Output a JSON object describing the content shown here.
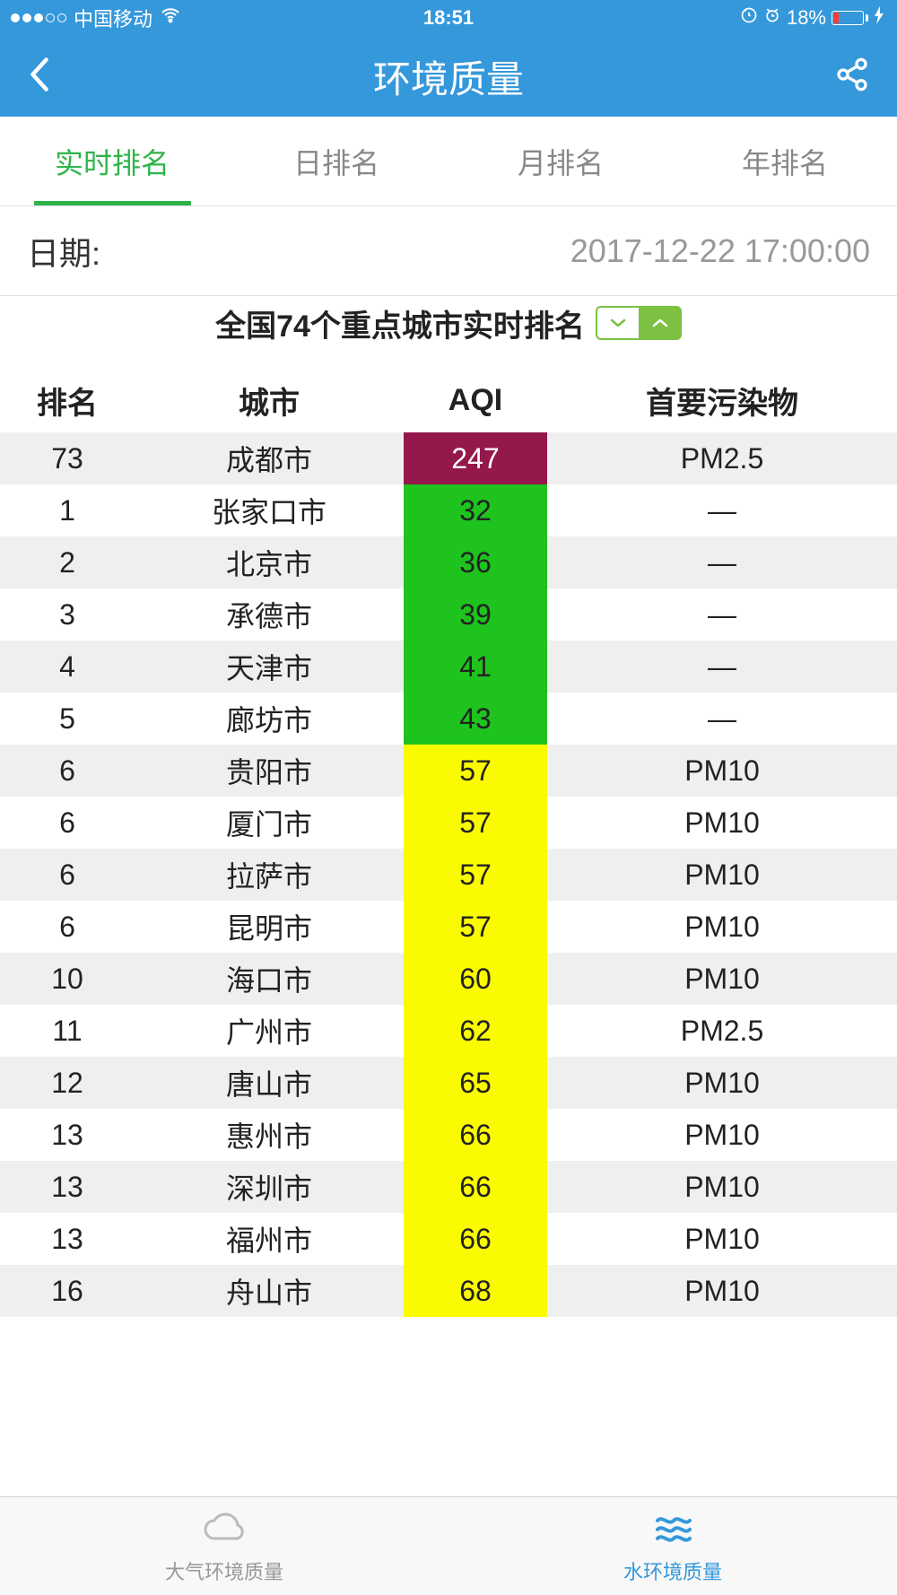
{
  "status_bar": {
    "carrier": "中国移动",
    "time": "18:51",
    "battery_percent": "18%",
    "battery_fill_color": "#ff3b30"
  },
  "nav": {
    "title": "环境质量"
  },
  "tabs": {
    "items": [
      {
        "label": "实时排名",
        "active": true
      },
      {
        "label": "日排名",
        "active": false
      },
      {
        "label": "月排名",
        "active": false
      },
      {
        "label": "年排名",
        "active": false
      }
    ]
  },
  "date": {
    "label": "日期:",
    "value": "2017-12-22 17:00:00"
  },
  "subtitle": "全国74个重点城市实时排名",
  "colors": {
    "header_bg": "#3598db",
    "tab_active": "#2fb44a",
    "sort_btn": "#7cc142",
    "aqi_maroon": "#94184b",
    "aqi_green": "#1ec31e",
    "aqi_yellow": "#fbfb00",
    "row_odd": "#efefef",
    "bottom_active": "#3598db"
  },
  "table": {
    "headers": {
      "rank": "排名",
      "city": "城市",
      "aqi": "AQI",
      "pollutant": "首要污染物"
    },
    "rows": [
      {
        "rank": "73",
        "city": "成都市",
        "aqi": "247",
        "aqi_color": "#94184b",
        "aqi_text_white": true,
        "pollutant": "PM2.5"
      },
      {
        "rank": "1",
        "city": "张家口市",
        "aqi": "32",
        "aqi_color": "#1ec31e",
        "aqi_text_white": false,
        "pollutant": "—"
      },
      {
        "rank": "2",
        "city": "北京市",
        "aqi": "36",
        "aqi_color": "#1ec31e",
        "aqi_text_white": false,
        "pollutant": "—"
      },
      {
        "rank": "3",
        "city": "承德市",
        "aqi": "39",
        "aqi_color": "#1ec31e",
        "aqi_text_white": false,
        "pollutant": "—"
      },
      {
        "rank": "4",
        "city": "天津市",
        "aqi": "41",
        "aqi_color": "#1ec31e",
        "aqi_text_white": false,
        "pollutant": "—"
      },
      {
        "rank": "5",
        "city": "廊坊市",
        "aqi": "43",
        "aqi_color": "#1ec31e",
        "aqi_text_white": false,
        "pollutant": "—"
      },
      {
        "rank": "6",
        "city": "贵阳市",
        "aqi": "57",
        "aqi_color": "#fbfb00",
        "aqi_text_white": false,
        "pollutant": "PM10"
      },
      {
        "rank": "6",
        "city": "厦门市",
        "aqi": "57",
        "aqi_color": "#fbfb00",
        "aqi_text_white": false,
        "pollutant": "PM10"
      },
      {
        "rank": "6",
        "city": "拉萨市",
        "aqi": "57",
        "aqi_color": "#fbfb00",
        "aqi_text_white": false,
        "pollutant": "PM10"
      },
      {
        "rank": "6",
        "city": "昆明市",
        "aqi": "57",
        "aqi_color": "#fbfb00",
        "aqi_text_white": false,
        "pollutant": "PM10"
      },
      {
        "rank": "10",
        "city": "海口市",
        "aqi": "60",
        "aqi_color": "#fbfb00",
        "aqi_text_white": false,
        "pollutant": "PM10"
      },
      {
        "rank": "11",
        "city": "广州市",
        "aqi": "62",
        "aqi_color": "#fbfb00",
        "aqi_text_white": false,
        "pollutant": "PM2.5"
      },
      {
        "rank": "12",
        "city": "唐山市",
        "aqi": "65",
        "aqi_color": "#fbfb00",
        "aqi_text_white": false,
        "pollutant": "PM10"
      },
      {
        "rank": "13",
        "city": "惠州市",
        "aqi": "66",
        "aqi_color": "#fbfb00",
        "aqi_text_white": false,
        "pollutant": "PM10"
      },
      {
        "rank": "13",
        "city": "深圳市",
        "aqi": "66",
        "aqi_color": "#fbfb00",
        "aqi_text_white": false,
        "pollutant": "PM10"
      },
      {
        "rank": "13",
        "city": "福州市",
        "aqi": "66",
        "aqi_color": "#fbfb00",
        "aqi_text_white": false,
        "pollutant": "PM10"
      },
      {
        "rank": "16",
        "city": "舟山市",
        "aqi": "68",
        "aqi_color": "#fbfb00",
        "aqi_text_white": false,
        "pollutant": "PM10"
      }
    ]
  },
  "bottom_tabs": {
    "air": "大气环境质量",
    "water": "水环境质量"
  }
}
